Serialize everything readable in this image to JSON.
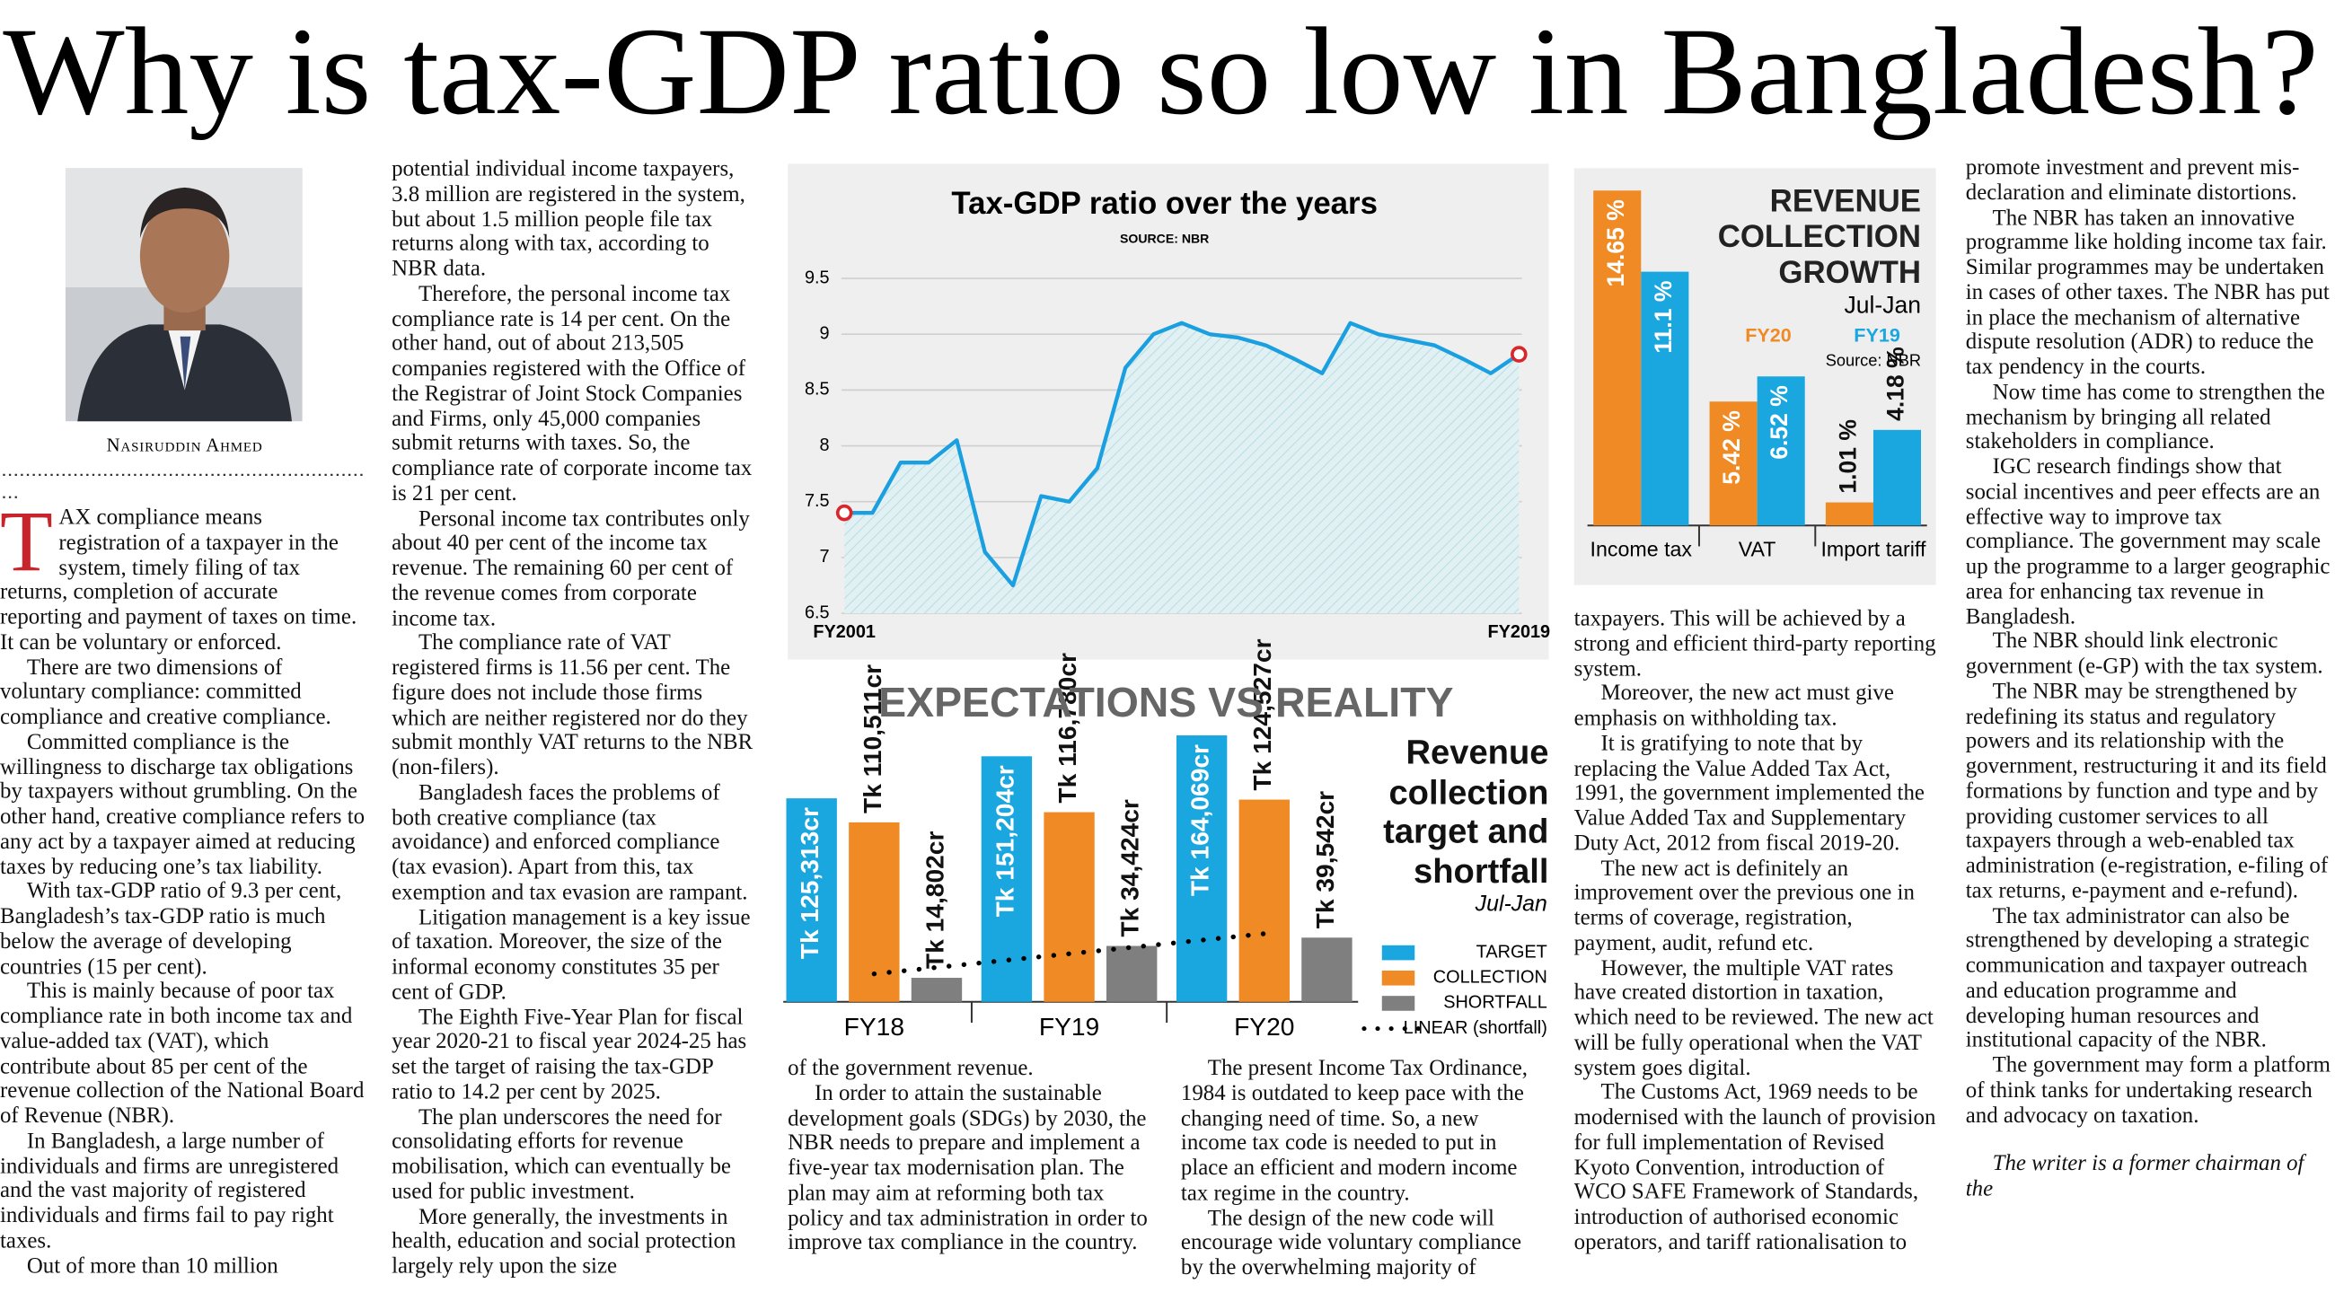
{
  "headline": "Why is tax-GDP ratio so low in Bangladesh?",
  "author": "Nasiruddin Ahmed",
  "article": {
    "drop_cap": "T",
    "columns": [
      [
        "AX compliance means registration of a taxpayer in the system, timely filing of tax returns, completion of accurate reporting and payment of taxes on time. It can be voluntary or enforced.",
        "There are two dimensions of voluntary compliance: committed compliance and creative compliance.",
        "Committed compliance is the willingness to discharge tax obligations by taxpayers without grumbling. On the other hand, creative compliance refers to any act by a taxpayer aimed at reducing taxes by reducing one’s tax liability.",
        "With tax-GDP ratio of 9.3 per cent, Bangladesh’s tax-GDP ratio is much below the average of developing countries (15 per cent).",
        "This is mainly because of poor tax compliance rate in both income tax and value-added tax (VAT), which contribute about 85 per cent of the revenue collection of the National Board of Revenue (NBR).",
        "In Bangladesh, a large number of individuals and firms are unregistered and the vast majority of registered individuals and firms fail to pay right taxes.",
        "Out of more than 10 million"
      ],
      [
        "potential individual income taxpayers, 3.8 million are registered in the system, but about 1.5 million people file tax returns along with tax, according to NBR data.",
        "Therefore, the personal income tax compliance rate is 14 per cent. On the other hand, out of about 213,505 companies registered with the Office of the Registrar of Joint Stock Companies and Firms, only 45,000 companies submit returns with taxes. So, the compliance rate of corporate income tax is 21 per cent.",
        "Personal income tax contributes only about 40 per cent of the income tax revenue. The remaining 60 per cent of the revenue comes from corporate income tax.",
        "The compliance rate of VAT registered firms is 11.56 per cent. The figure does not include those firms which are neither registered nor do they submit monthly VAT returns to the NBR (non-filers).",
        "Bangladesh faces the problems of both creative compliance (tax avoidance) and enforced compliance (tax evasion). Apart from this, tax exemption and tax evasion are rampant.",
        "Litigation management is a key issue of taxation. Moreover, the size of the informal economy constitutes 35 per cent of GDP.",
        "The Eighth Five-Year Plan for fiscal year 2020-21 to fiscal year 2024-25 has set the target of raising the tax-GDP ratio to 14.2 per cent by 2025.",
        "The plan underscores the need for consolidating efforts for revenue mobilisation, which can eventually be used for public investment.",
        "More generally, the investments in health, education and social protection largely rely upon the size"
      ],
      [
        "of the government revenue.",
        "In order to attain the sustainable development goals (SDGs) by 2030, the NBR needs to prepare and implement a five-year tax modernisation plan. The plan may aim at reforming both tax policy and tax administration in order to improve tax compliance in the country."
      ],
      [
        "The present Income Tax Ordinance, 1984 is outdated to keep pace with the changing need of time. So, a new income tax code is needed to put in place an efficient and modern income tax regime in the country.",
        "The design of the new code will encourage wide voluntary compliance by the overwhelming majority of"
      ],
      [
        "taxpayers. This will be achieved by a strong and efficient third-party reporting system.",
        "Moreover, the new act must give emphasis on withholding tax.",
        "It is gratifying to note that by replacing the Value Added Tax Act, 1991, the government implemented the Value Added Tax and Supplementary Duty Act, 2012 from fiscal 2019-20.",
        "The new act is definitely an improvement over the previous one in terms of coverage, registration, payment, audit, refund etc.",
        "However, the multiple VAT rates have created distortion in taxation, which need to be reviewed. The new act will be fully operational when the VAT system goes digital.",
        "The Customs Act, 1969 needs to be modernised with the launch of provision for full implementation of Revised Kyoto Convention, introduction of WCO SAFE Framework of Standards, introduction of authorised economic operators, and tariff rationalisation to"
      ],
      [
        "promote investment and prevent mis-declaration and eliminate distortions.",
        "The NBR has taken an innovative programme like holding income tax fair. Similar programmes may be undertaken in cases of other taxes. The NBR has put in place the mechanism of alternative dispute resolution (ADR) to reduce the tax pendency in the courts.",
        "Now time has come to strengthen the mechanism by bringing all related stakeholders in compliance.",
        "IGC research findings show that social incentives and peer effects are an effective way to improve tax compliance. The government may scale up the programme to a larger geographic area for enhancing tax revenue in Bangladesh.",
        "The NBR should link electronic government (e-GP) with the tax system.",
        "The NBR may be strengthened by redefining its status and regulatory powers and its relationship with the government, restructuring it and its field formations by function and type and by providing customer services to all taxpayers through a web-enabled tax administration (e-registration, e-filing of tax returns, e-payment and e-refund).",
        "The tax administrator can also be strengthened by developing a strategic communication and taxpayer outreach and education programme and developing human resources and institutional capacity of the NBR.",
        "The government may form a platform of think tanks for undertaking research and advocacy on taxation.",
        "The writer is a former chairman of the"
      ]
    ]
  },
  "chart_data": [
    {
      "type": "line",
      "title": "Tax-GDP ratio over the years",
      "source": "SOURCE: NBR",
      "categories": [
        "FY2001",
        null,
        null,
        null,
        null,
        null,
        null,
        null,
        null,
        null,
        null,
        null,
        null,
        null,
        null,
        null,
        null,
        null,
        null,
        null,
        null,
        null,
        null,
        null,
        "FY2019"
      ],
      "values": [
        7.4,
        7.4,
        7.85,
        7.85,
        8.05,
        7.05,
        6.75,
        7.55,
        7.5,
        7.8,
        8.7,
        9.0,
        9.1,
        9.0,
        8.97,
        8.9,
        8.78,
        8.65,
        9.1,
        9.0,
        8.95,
        8.9,
        8.78,
        8.65,
        8.82
      ],
      "color": "#1a9fe0",
      "marker_color": "#d8262b",
      "ylim": [
        6.5,
        9.5
      ],
      "yticks": [
        6.5,
        7,
        7.5,
        8,
        8.5,
        9,
        9.5
      ],
      "grid": true
    },
    {
      "type": "bar",
      "title": "REVENUE COLLECTION GROWTH",
      "subtitle": "Jul-Jan",
      "source": "Source: NBR",
      "categories": [
        "Income tax",
        "VAT",
        "Import tariff"
      ],
      "series": [
        {
          "name": "FY20",
          "color": "#f08a24",
          "values": [
            14.65,
            5.42,
            1.01
          ],
          "value_labels": [
            "14.65 %",
            "5.42 %",
            "1.01 %"
          ]
        },
        {
          "name": "FY19",
          "color": "#1aa7e0",
          "values": [
            11.1,
            6.52,
            4.18
          ],
          "value_labels": [
            "11.1 %",
            "6.52 %",
            "4.18 %"
          ]
        }
      ]
    },
    {
      "type": "bar",
      "title": "EXPECTATIONS VS REALITY",
      "subtitle": "Revenue collection target and shortfall",
      "note": "Jul-Jan",
      "categories": [
        "FY18",
        "FY19",
        "FY20"
      ],
      "series": [
        {
          "name": "TARGET",
          "color": "#1aa7e0",
          "values": [
            125313,
            151204,
            164069
          ],
          "value_labels": [
            "Tk 125,313cr",
            "Tk 151,204cr",
            "Tk 164,069cr"
          ]
        },
        {
          "name": "COLLECTION",
          "color": "#f08a24",
          "values": [
            110511,
            116780,
            124527
          ],
          "value_labels": [
            "Tk 110,511cr",
            "Tk 116,780cr",
            "Tk 124,527cr"
          ]
        },
        {
          "name": "SHORTFALL",
          "color": "#7f7f7f",
          "values": [
            14802,
            34424,
            39542
          ],
          "value_labels": [
            "Tk 14,802cr",
            "Tk 34,424cr",
            "Tk 39,542cr"
          ]
        }
      ],
      "trendline": {
        "name": "LINEAR (shortfall)",
        "color": "#000000"
      }
    }
  ]
}
